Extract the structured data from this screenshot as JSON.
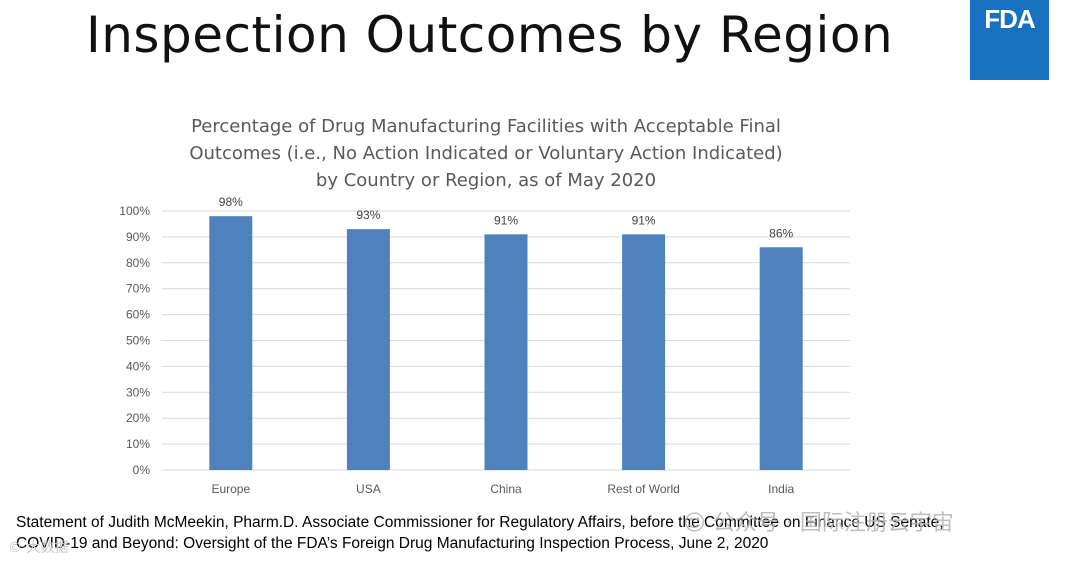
{
  "slide": {
    "title": "Inspection Outcomes by Region",
    "logo_text": "FDA",
    "source_lines": [
      "Statement of Judith McMeekin, Pharm.D. Associate Commissioner for Regulatory Affairs, before the Committee on Finance US Senate,",
      "COVID-19 and Beyond: Oversight of the FDA’s Foreign Drug Manufacturing Inspection Process,  June 2, 2020"
    ],
    "watermark_left": "© 大数据",
    "watermark_right": "☺ 公众号 · 国际注册云宇宙"
  },
  "colors": {
    "bar": "#4f81bd",
    "logo_bg": "#1870c0",
    "grid": "#d9d9d9",
    "axis_text": "#595959"
  },
  "chart_data": {
    "type": "bar",
    "title_lines": [
      "Percentage of Drug Manufacturing Facilities with Acceptable Final",
      "Outcomes (i.e., No Action Indicated or Voluntary Action Indicated)",
      "by Country or Region, as of May 2020"
    ],
    "categories": [
      "Europe",
      "USA",
      "China",
      "Rest of World",
      "India"
    ],
    "values": [
      98,
      93,
      91,
      91,
      86
    ],
    "data_labels": [
      "98%",
      "93%",
      "91%",
      "91%",
      "86%"
    ],
    "y_ticks": [
      "0%",
      "10%",
      "20%",
      "30%",
      "40%",
      "50%",
      "60%",
      "70%",
      "80%",
      "90%",
      "100%"
    ],
    "ylim": [
      0,
      100
    ],
    "xlabel": "",
    "ylabel": "",
    "grid": true,
    "legend": "none"
  }
}
